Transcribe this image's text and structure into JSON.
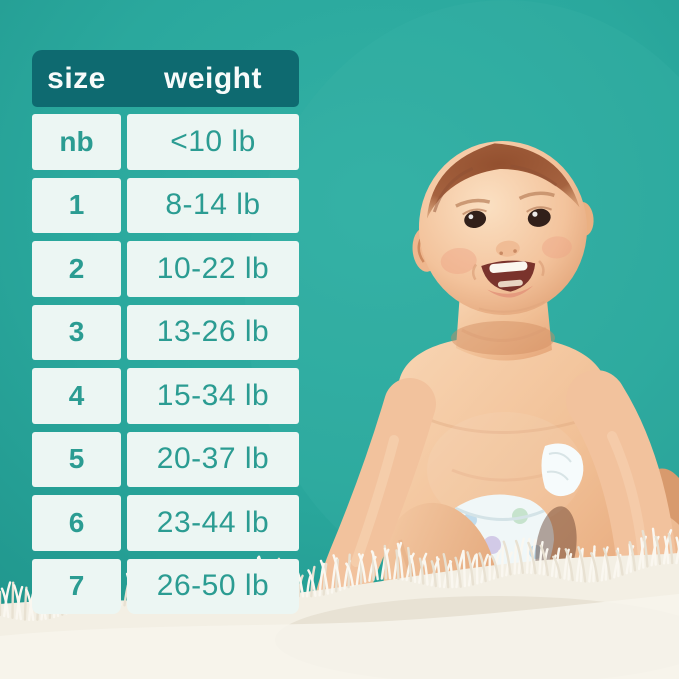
{
  "colors": {
    "bg": "#2aa89d",
    "bg_light": "#33b1a5",
    "bg_dark": "#1f948b",
    "header_bg": "#0e6a70",
    "header_text": "#f7fbfa",
    "cell_bg": "#ecf6f3",
    "cell_text": "#2b9c92",
    "skin": "#f2c29d",
    "skin_shade": "#e2a279",
    "hair": "#a5623f",
    "fur": "#f3efe4",
    "diaper": "#f0f7f8"
  },
  "table": {
    "headers": {
      "size": "size",
      "weight": "weight"
    },
    "rows": [
      {
        "size": "nb",
        "weight": "<10 lb"
      },
      {
        "size": "1",
        "weight": "8-14 lb"
      },
      {
        "size": "2",
        "weight": "10-22 lb"
      },
      {
        "size": "3",
        "weight": "13-26 lb"
      },
      {
        "size": "4",
        "weight": "15-34 lb"
      },
      {
        "size": "5",
        "weight": "20-37 lb"
      },
      {
        "size": "6",
        "weight": "23-44 lb"
      },
      {
        "size": "7",
        "weight": "26-50 lb"
      }
    ]
  }
}
